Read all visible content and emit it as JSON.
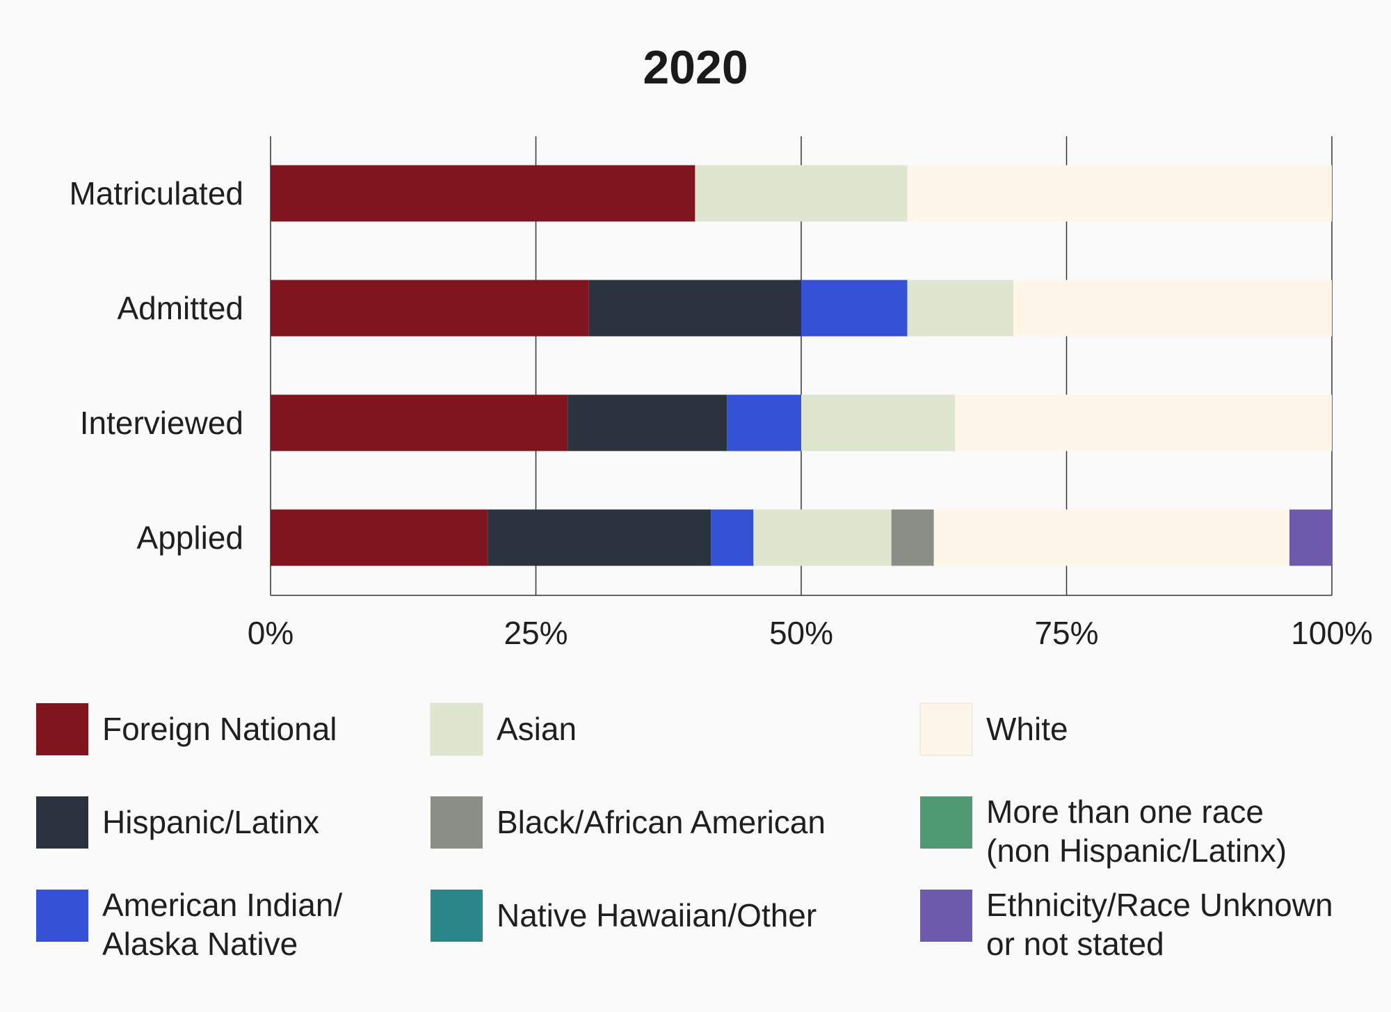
{
  "chart_data": {
    "type": "bar",
    "orientation": "horizontal",
    "stacked": true,
    "normalized": true,
    "title": "2020",
    "xlabel": "",
    "ylabel": "",
    "xlim": [
      0,
      100
    ],
    "categories": [
      "Matriculated",
      "Admitted",
      "Interviewed",
      "Applied"
    ],
    "x_ticks": [
      0,
      25,
      50,
      75,
      100
    ],
    "x_tick_labels": [
      "0%",
      "25%",
      "50%",
      "75%",
      "100%"
    ],
    "grid": true,
    "legend_position": "bottom",
    "series": [
      {
        "name": "Foreign National",
        "color": "#80141f",
        "values": [
          40,
          30,
          28,
          20.5
        ]
      },
      {
        "name": "Hispanic/Latinx",
        "color": "#2b343e",
        "values": [
          0,
          20,
          15,
          21
        ]
      },
      {
        "name": "American Indian/ Alaska Native",
        "color": "#3552d4",
        "values": [
          0,
          10,
          7,
          4
        ]
      },
      {
        "name": "Native Hawaiian/Other",
        "color": "#2a888a",
        "values": [
          0,
          0,
          0,
          0
        ]
      },
      {
        "name": "Asian",
        "color": "#dfe6cf",
        "values": [
          20,
          10,
          14.5,
          13
        ]
      },
      {
        "name": "Black/African American",
        "color": "#8b8e86",
        "values": [
          0,
          0,
          0,
          4
        ]
      },
      {
        "name": "More than one race (non Hispanic/Latinx)",
        "color": "#4f9a70",
        "values": [
          0,
          0,
          0,
          0
        ]
      },
      {
        "name": "White",
        "color": "#fff6ea",
        "values": [
          40,
          30,
          35.5,
          33.5
        ]
      },
      {
        "name": "Ethnicity/Race Unknown or not stated",
        "color": "#6e5aad",
        "values": [
          0,
          0,
          0,
          4
        ]
      }
    ],
    "legend": [
      {
        "series": 0,
        "lines": [
          "Foreign National"
        ]
      },
      {
        "series": 4,
        "lines": [
          "Asian"
        ]
      },
      {
        "series": 7,
        "lines": [
          "White"
        ]
      },
      {
        "series": 1,
        "lines": [
          "Hispanic/Latinx"
        ]
      },
      {
        "series": 5,
        "lines": [
          "Black/African American"
        ]
      },
      {
        "series": 6,
        "lines": [
          "More than one race",
          "(non Hispanic/Latinx)"
        ]
      },
      {
        "series": 2,
        "lines": [
          "American Indian/",
          "Alaska Native"
        ]
      },
      {
        "series": 3,
        "lines": [
          "Native Hawaiian/Other"
        ]
      },
      {
        "series": 8,
        "lines": [
          "Ethnicity/Race Unknown",
          "or not stated"
        ]
      }
    ]
  }
}
